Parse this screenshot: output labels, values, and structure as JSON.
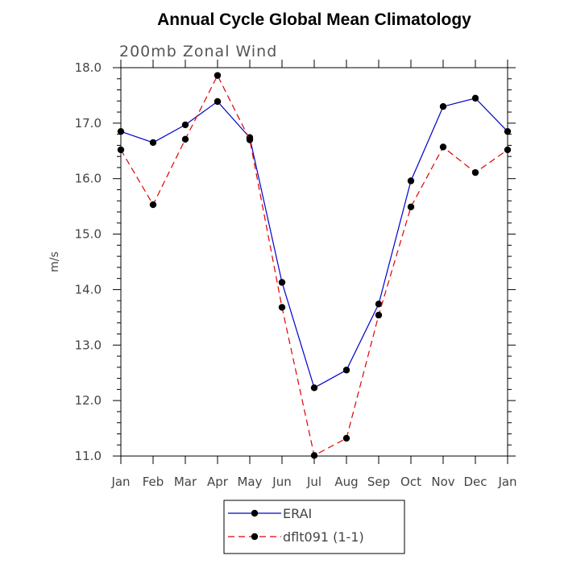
{
  "chart_data": {
    "type": "line",
    "title": "Annual Cycle Global Mean Climatology",
    "subtitle": "200mb Zonal Wind",
    "xlabel": "",
    "ylabel": "m/s",
    "categories": [
      "Jan",
      "Feb",
      "Mar",
      "Apr",
      "May",
      "Jun",
      "Jul",
      "Aug",
      "Sep",
      "Oct",
      "Nov",
      "Dec",
      "Jan"
    ],
    "ylim": [
      11.0,
      18.0
    ],
    "yticks": [
      "11.0",
      "12.0",
      "13.0",
      "14.0",
      "15.0",
      "16.0",
      "17.0",
      "18.0"
    ],
    "grid": false,
    "legend_position": "bottom",
    "series": [
      {
        "name": "ERAI",
        "color": "#0000cc",
        "style": "solid",
        "values": [
          16.85,
          16.65,
          16.97,
          17.39,
          16.74,
          14.13,
          12.23,
          12.55,
          13.74,
          15.96,
          17.3,
          17.45,
          16.85
        ]
      },
      {
        "name": "dflt091 (1-1)",
        "color": "#e00000",
        "style": "dashed",
        "values": [
          16.52,
          15.53,
          16.71,
          17.86,
          16.7,
          13.68,
          11.01,
          11.32,
          13.54,
          15.49,
          16.57,
          16.11,
          16.52
        ]
      }
    ]
  }
}
